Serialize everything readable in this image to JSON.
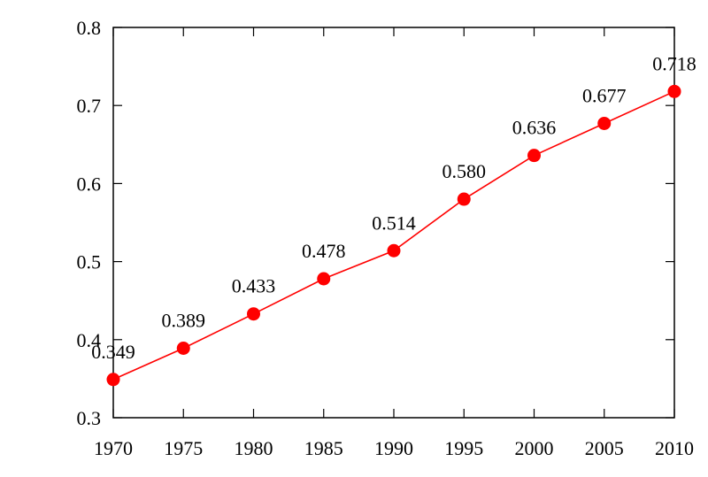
{
  "chart_data": {
    "type": "line",
    "title": "",
    "xlabel": "",
    "ylabel": "",
    "x": [
      1970,
      1975,
      1980,
      1985,
      1990,
      1995,
      2000,
      2005,
      2010
    ],
    "series": [
      {
        "values": [
          0.349,
          0.389,
          0.433,
          0.478,
          0.514,
          0.58,
          0.636,
          0.677,
          0.718
        ],
        "labels": [
          "0.349",
          "0.389",
          "0.433",
          "0.478",
          "0.514",
          "0.580",
          "0.636",
          "0.677",
          "0.718"
        ],
        "color": "#ff0000"
      }
    ],
    "xlim": [
      1970,
      2010
    ],
    "ylim": [
      0.3,
      0.8
    ],
    "xticks": [
      "1970",
      "1975",
      "1980",
      "1985",
      "1990",
      "1995",
      "2000",
      "2005",
      "2010"
    ],
    "yticks": [
      "0.3",
      "0.4",
      "0.5",
      "0.6",
      "0.7",
      "0.8"
    ],
    "grid": false,
    "legend": "none"
  }
}
